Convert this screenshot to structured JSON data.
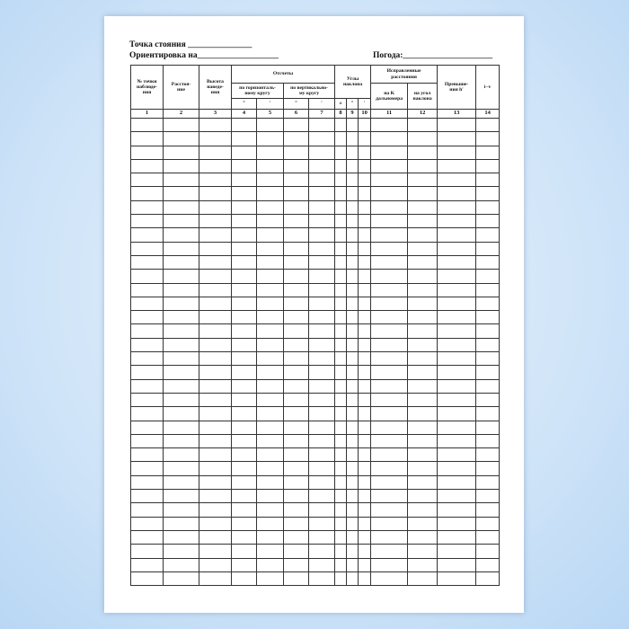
{
  "header": {
    "station": "Точка стояния _______________",
    "orientation": "Ориентировка на___________________",
    "weather": "Погода:_____________________"
  },
  "table": {
    "head": {
      "point": "№ точки\nнаблюде-\nния",
      "distance": "Расстоя-\nние",
      "height": "Высота\nнаведе-\nния",
      "readings": "Отсчеты",
      "horizontal": "по горизонталь-\nному кругу",
      "vertical": "по вертикально-\nму кругу",
      "reading_units": [
        "°",
        "′",
        "°",
        "′"
      ],
      "slope": "Углы\nнаклона",
      "slope_units": [
        "±",
        "°",
        "′"
      ],
      "corrected": "Исправленные\nрасстояния",
      "by_k": "на K\nдальномера",
      "by_angle": "на угол\nнаклона",
      "elevation": "Превыше-\nния h′",
      "iv": "i−v"
    },
    "numbers": [
      "1",
      "2",
      "3",
      "4",
      "5",
      "6",
      "7",
      "8",
      "9",
      "10",
      "11",
      "12",
      "13",
      "14"
    ]
  }
}
